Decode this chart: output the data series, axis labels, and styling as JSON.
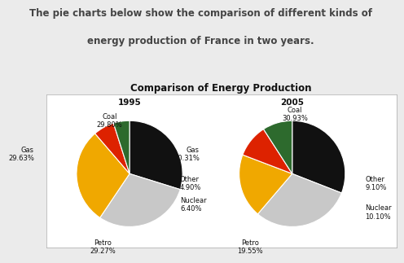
{
  "title_line1": "The pie charts below show the comparison of different kinds of",
  "title_line2": "energy production of France in two years.",
  "chart_title": "Comparison of Energy Production",
  "background_outer": "#ebebeb",
  "background_inner": "#ffffff",
  "years": [
    "1995",
    "2005"
  ],
  "categories": [
    "Coal",
    "Gas",
    "Petro",
    "Nuclear",
    "Other"
  ],
  "values_1995": [
    29.8,
    29.63,
    29.27,
    6.4,
    4.9
  ],
  "values_2005": [
    30.93,
    30.31,
    19.55,
    10.1,
    9.1
  ],
  "colors": [
    "#111111",
    "#c8c8c8",
    "#f0a800",
    "#dd2200",
    "#2d6a2d"
  ],
  "startangle_1995": 90,
  "startangle_2005": 90,
  "label_fontsize": 6,
  "title_fontsize": 8.5,
  "year_fontsize": 7.5,
  "chart_title_fontsize": 8.5
}
